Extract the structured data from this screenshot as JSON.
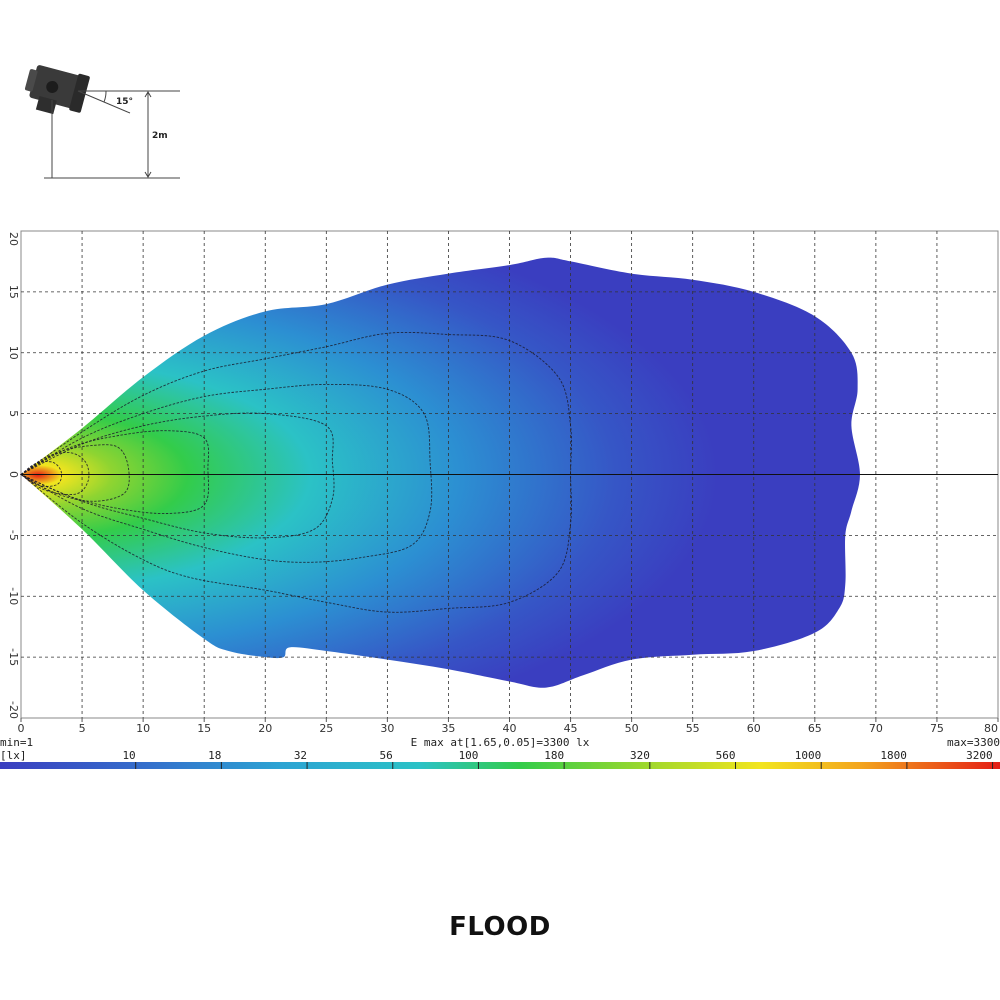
{
  "setup_diagram": {
    "tilt_label": "15°",
    "height_label": "2m"
  },
  "chart_data": {
    "type": "heatmap",
    "title": "",
    "xlabel": "",
    "ylabel": "",
    "xlim": [
      0,
      80
    ],
    "ylim": [
      -20,
      20
    ],
    "x_ticks": [
      0,
      5,
      10,
      15,
      20,
      25,
      30,
      35,
      40,
      45,
      50,
      55,
      60,
      65,
      70,
      75,
      80
    ],
    "y_ticks": [
      20,
      15,
      10,
      5,
      0,
      -5,
      -10,
      -15,
      -20
    ],
    "grid": true,
    "min_label": "min=1",
    "max_label": "max=3300",
    "emax_label": "E max at[1.65,0.05]=3300 lx",
    "unit_label": "[lx]",
    "legend_scale": [
      "10",
      "18",
      "32",
      "56",
      "100",
      "180",
      "320",
      "560",
      "1000",
      "1800",
      "3200"
    ],
    "colors": {
      "low": "#3a3ec0",
      "mid_low": "#2c8fd2",
      "mid": "#2bc2c6",
      "mid_high": "#3bcf3a",
      "high": "#f2e51f",
      "peak": "#e41d16"
    },
    "outer_contour": [
      [
        0,
        0
      ],
      [
        5,
        3.8
      ],
      [
        10,
        8
      ],
      [
        15,
        11.4
      ],
      [
        20,
        13.4
      ],
      [
        25,
        14
      ],
      [
        30,
        15.6
      ],
      [
        35,
        16.5
      ],
      [
        40,
        17.2
      ],
      [
        43,
        17.8
      ],
      [
        45,
        17.5
      ],
      [
        50,
        16.5
      ],
      [
        55,
        16
      ],
      [
        60,
        15
      ],
      [
        65,
        13
      ],
      [
        68,
        10
      ],
      [
        68.5,
        7
      ],
      [
        68,
        4
      ],
      [
        68.7,
        0
      ],
      [
        68,
        -3
      ],
      [
        67.5,
        -5
      ],
      [
        67.5,
        -9
      ],
      [
        67,
        -11
      ],
      [
        65,
        -13
      ],
      [
        60,
        -14.5
      ],
      [
        55,
        -14.8
      ],
      [
        50,
        -15.2
      ],
      [
        46,
        -16.5
      ],
      [
        43,
        -17.5
      ],
      [
        40,
        -17
      ],
      [
        35,
        -16
      ],
      [
        30,
        -15.2
      ],
      [
        25,
        -14.5
      ],
      [
        22,
        -14.2
      ],
      [
        21.5,
        -15
      ],
      [
        20,
        -15
      ],
      [
        17,
        -14.5
      ],
      [
        15,
        -13.5
      ],
      [
        10,
        -9.5
      ],
      [
        5,
        -4.5
      ],
      [
        0,
        0
      ]
    ],
    "isolux_lines": [
      {
        "level": "10",
        "points": [
          [
            0,
            0
          ],
          [
            5,
            3.5
          ],
          [
            10,
            6.5
          ],
          [
            15,
            8.5
          ],
          [
            20,
            9.5
          ],
          [
            25,
            10.5
          ],
          [
            30,
            11.6
          ],
          [
            35,
            11.5
          ],
          [
            40,
            11
          ],
          [
            44,
            8
          ],
          [
            45,
            4
          ],
          [
            45,
            0
          ],
          [
            45,
            -4
          ],
          [
            44,
            -8
          ],
          [
            40,
            -10.5
          ],
          [
            35,
            -11
          ],
          [
            30,
            -11.3
          ],
          [
            25,
            -10.5
          ],
          [
            20,
            -9.5
          ],
          [
            14,
            -8.5
          ],
          [
            10,
            -7
          ],
          [
            5,
            -4
          ],
          [
            0,
            0
          ]
        ]
      },
      {
        "level": "32",
        "points": [
          [
            0,
            0
          ],
          [
            5,
            3
          ],
          [
            10,
            5
          ],
          [
            15,
            6.4
          ],
          [
            20,
            7
          ],
          [
            25,
            7.4
          ],
          [
            30,
            7
          ],
          [
            33,
            5
          ],
          [
            33.5,
            1
          ],
          [
            33.5,
            -3
          ],
          [
            32,
            -5.8
          ],
          [
            28,
            -6.8
          ],
          [
            24,
            -7.2
          ],
          [
            20,
            -7
          ],
          [
            15,
            -6
          ],
          [
            10,
            -4.5
          ],
          [
            5,
            -2.8
          ],
          [
            0,
            0
          ]
        ]
      },
      {
        "level": "56",
        "points": [
          [
            0,
            0
          ],
          [
            5,
            2.5
          ],
          [
            10,
            4
          ],
          [
            15,
            4.8
          ],
          [
            20,
            5
          ],
          [
            25,
            4
          ],
          [
            25.5,
            1
          ],
          [
            25.5,
            -2
          ],
          [
            24,
            -4.5
          ],
          [
            20,
            -5.2
          ],
          [
            15,
            -4.8
          ],
          [
            10,
            -3.6
          ],
          [
            5,
            -2.2
          ],
          [
            0,
            0
          ]
        ]
      },
      {
        "level": "100",
        "points": [
          [
            0,
            0
          ],
          [
            4,
            2.2
          ],
          [
            8,
            3.2
          ],
          [
            12,
            3.6
          ],
          [
            15,
            3
          ],
          [
            15.3,
            0.5
          ],
          [
            15,
            -2.5
          ],
          [
            12,
            -3.2
          ],
          [
            8,
            -2.8
          ],
          [
            4,
            -1.8
          ],
          [
            0,
            0
          ]
        ]
      },
      {
        "level": "180",
        "points": [
          [
            0,
            0
          ],
          [
            3,
            1.8
          ],
          [
            6,
            2.4
          ],
          [
            8,
            2.2
          ],
          [
            8.8,
            0.5
          ],
          [
            8.5,
            -1.5
          ],
          [
            6,
            -2.2
          ],
          [
            3,
            -1.6
          ],
          [
            0,
            0
          ]
        ]
      },
      {
        "level": "320",
        "points": [
          [
            0,
            0
          ],
          [
            2,
            1.4
          ],
          [
            4,
            1.8
          ],
          [
            5.3,
            1
          ],
          [
            5.5,
            -0.5
          ],
          [
            4.5,
            -1.6
          ],
          [
            2,
            -1.3
          ],
          [
            0,
            0
          ]
        ]
      },
      {
        "level": "1000",
        "points": [
          [
            0,
            0
          ],
          [
            1.2,
            0.9
          ],
          [
            2.6,
            1
          ],
          [
            3.3,
            0.2
          ],
          [
            3,
            -0.8
          ],
          [
            1.5,
            -0.9
          ],
          [
            0,
            0
          ]
        ]
      }
    ],
    "hotspot": {
      "x": 1.65,
      "y": 0.05,
      "value": 3300
    }
  },
  "footer": {
    "label": "FLOOD"
  }
}
